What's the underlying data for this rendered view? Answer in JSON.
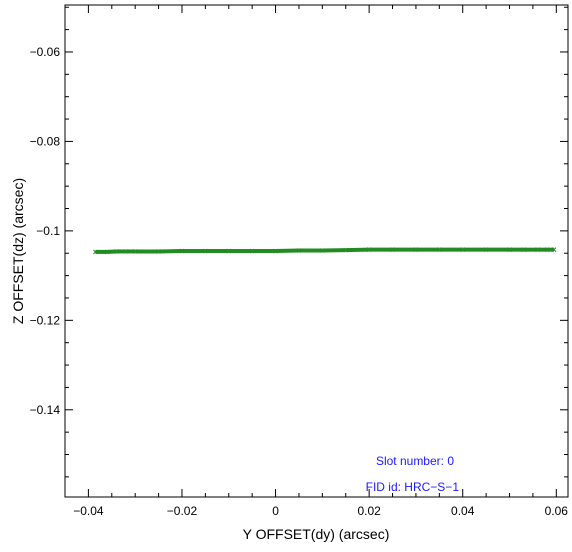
{
  "chart_data": {
    "type": "scatter",
    "xlabel": "Y OFFSET(dy) (arcsec)",
    "ylabel": "Z OFFSET(dz) (arcsec)",
    "xlim": [
      -0.045,
      0.0625
    ],
    "ylim": [
      -0.1595,
      -0.0495
    ],
    "x_ticks": [
      -0.04,
      -0.02,
      0,
      0.02,
      0.04,
      0.06
    ],
    "x_tick_labels": [
      "−0.04",
      "−0.02",
      "0",
      "0.02",
      "0.04",
      "0.06"
    ],
    "y_ticks": [
      -0.06,
      -0.08,
      -0.1,
      -0.12,
      -0.14
    ],
    "y_tick_labels": [
      "−0.06",
      "−0.08",
      "−0.1",
      "−0.12",
      "−0.14"
    ],
    "grid": false,
    "marker": "x",
    "color": "#228B22",
    "series": [
      {
        "x": [
          -0.0385,
          -0.036,
          -0.034,
          -0.032,
          -0.03,
          -0.025,
          -0.02,
          -0.015,
          -0.01,
          -0.005,
          0.0,
          0.005,
          0.01,
          0.015,
          0.02,
          0.025,
          0.03,
          0.035,
          0.04,
          0.045,
          0.05,
          0.053,
          0.056,
          0.058,
          0.0595
        ],
        "y": [
          -0.1047,
          -0.1047,
          -0.1046,
          -0.1046,
          -0.1046,
          -0.1046,
          -0.1045,
          -0.1045,
          -0.1045,
          -0.1045,
          -0.1045,
          -0.1044,
          -0.1044,
          -0.1043,
          -0.1042,
          -0.1042,
          -0.1042,
          -0.1042,
          -0.1042,
          -0.1042,
          -0.1042,
          -0.1042,
          -0.1042,
          -0.1042,
          -0.1042
        ]
      }
    ],
    "annotations": [
      "Slot number: 0",
      "FID id: HRC−S−1"
    ]
  }
}
